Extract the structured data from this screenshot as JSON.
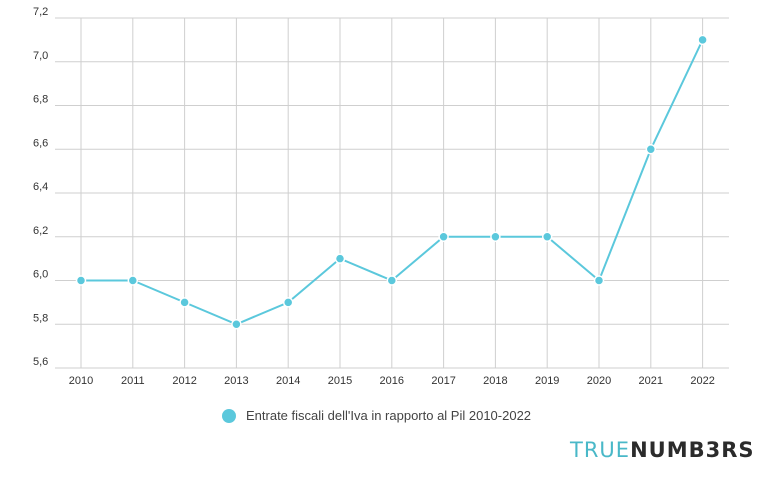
{
  "chart_data": {
    "type": "line",
    "categories": [
      "2010",
      "2011",
      "2012",
      "2013",
      "2014",
      "2015",
      "2016",
      "2017",
      "2018",
      "2019",
      "2020",
      "2021",
      "2022"
    ],
    "series": [
      {
        "name": "Entrate fiscali dell'Iva in rapporto al Pil 2010-2022",
        "values": [
          6.0,
          6.0,
          5.9,
          5.8,
          5.9,
          6.1,
          6.0,
          6.2,
          6.2,
          6.2,
          6.0,
          6.6,
          7.1
        ]
      }
    ],
    "ylim": [
      5.6,
      7.2
    ],
    "yticks": [
      "5,6",
      "5,8",
      "6,0",
      "6,2",
      "6,4",
      "6,6",
      "6,8",
      "7,0",
      "7,2"
    ],
    "grid": true,
    "legend": "bottom-center",
    "color": "#5bc8dc"
  },
  "logo": {
    "part1": "TRUE",
    "part2": "NUMB3RS"
  }
}
